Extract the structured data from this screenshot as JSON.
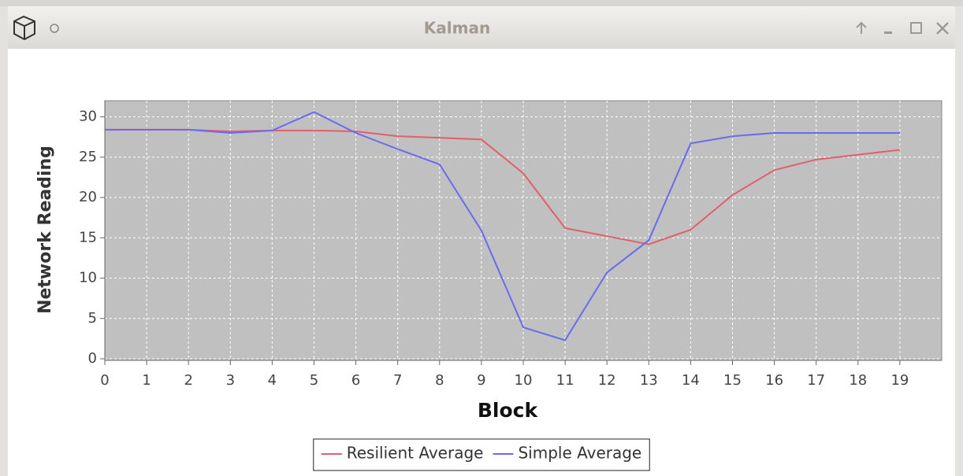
{
  "window": {
    "title": "Kalman"
  },
  "chart_data": {
    "type": "line",
    "xlabel": "Block",
    "ylabel": "Network Reading",
    "x": [
      0,
      1,
      2,
      3,
      4,
      5,
      6,
      7,
      8,
      9,
      10,
      11,
      12,
      13,
      14,
      15,
      16,
      17,
      18,
      19
    ],
    "series": [
      {
        "name": "Resilient Average",
        "color": "#e0606a",
        "values": [
          28.4,
          28.4,
          28.4,
          28.2,
          28.3,
          28.3,
          28.2,
          27.6,
          27.4,
          27.2,
          23.0,
          16.2,
          15.2,
          14.2,
          16.0,
          20.3,
          23.4,
          24.7,
          25.3,
          25.9
        ]
      },
      {
        "name": "Simple Average",
        "color": "#6a6af0",
        "values": [
          28.4,
          28.4,
          28.4,
          28.0,
          28.3,
          30.6,
          28.0,
          26.0,
          24.1,
          15.9,
          3.9,
          2.3,
          10.7,
          14.7,
          26.7,
          27.6,
          28.0,
          28.0,
          28.0,
          28.0
        ]
      }
    ],
    "xlim": [
      0,
      20
    ],
    "xticks": [
      0,
      1,
      2,
      3,
      4,
      5,
      6,
      7,
      8,
      9,
      10,
      11,
      12,
      13,
      14,
      15,
      16,
      17,
      18,
      19
    ],
    "ylim": [
      0,
      32
    ],
    "yticks": [
      0,
      5,
      10,
      15,
      20,
      25,
      30
    ],
    "grid": true,
    "legend": "bottom"
  }
}
